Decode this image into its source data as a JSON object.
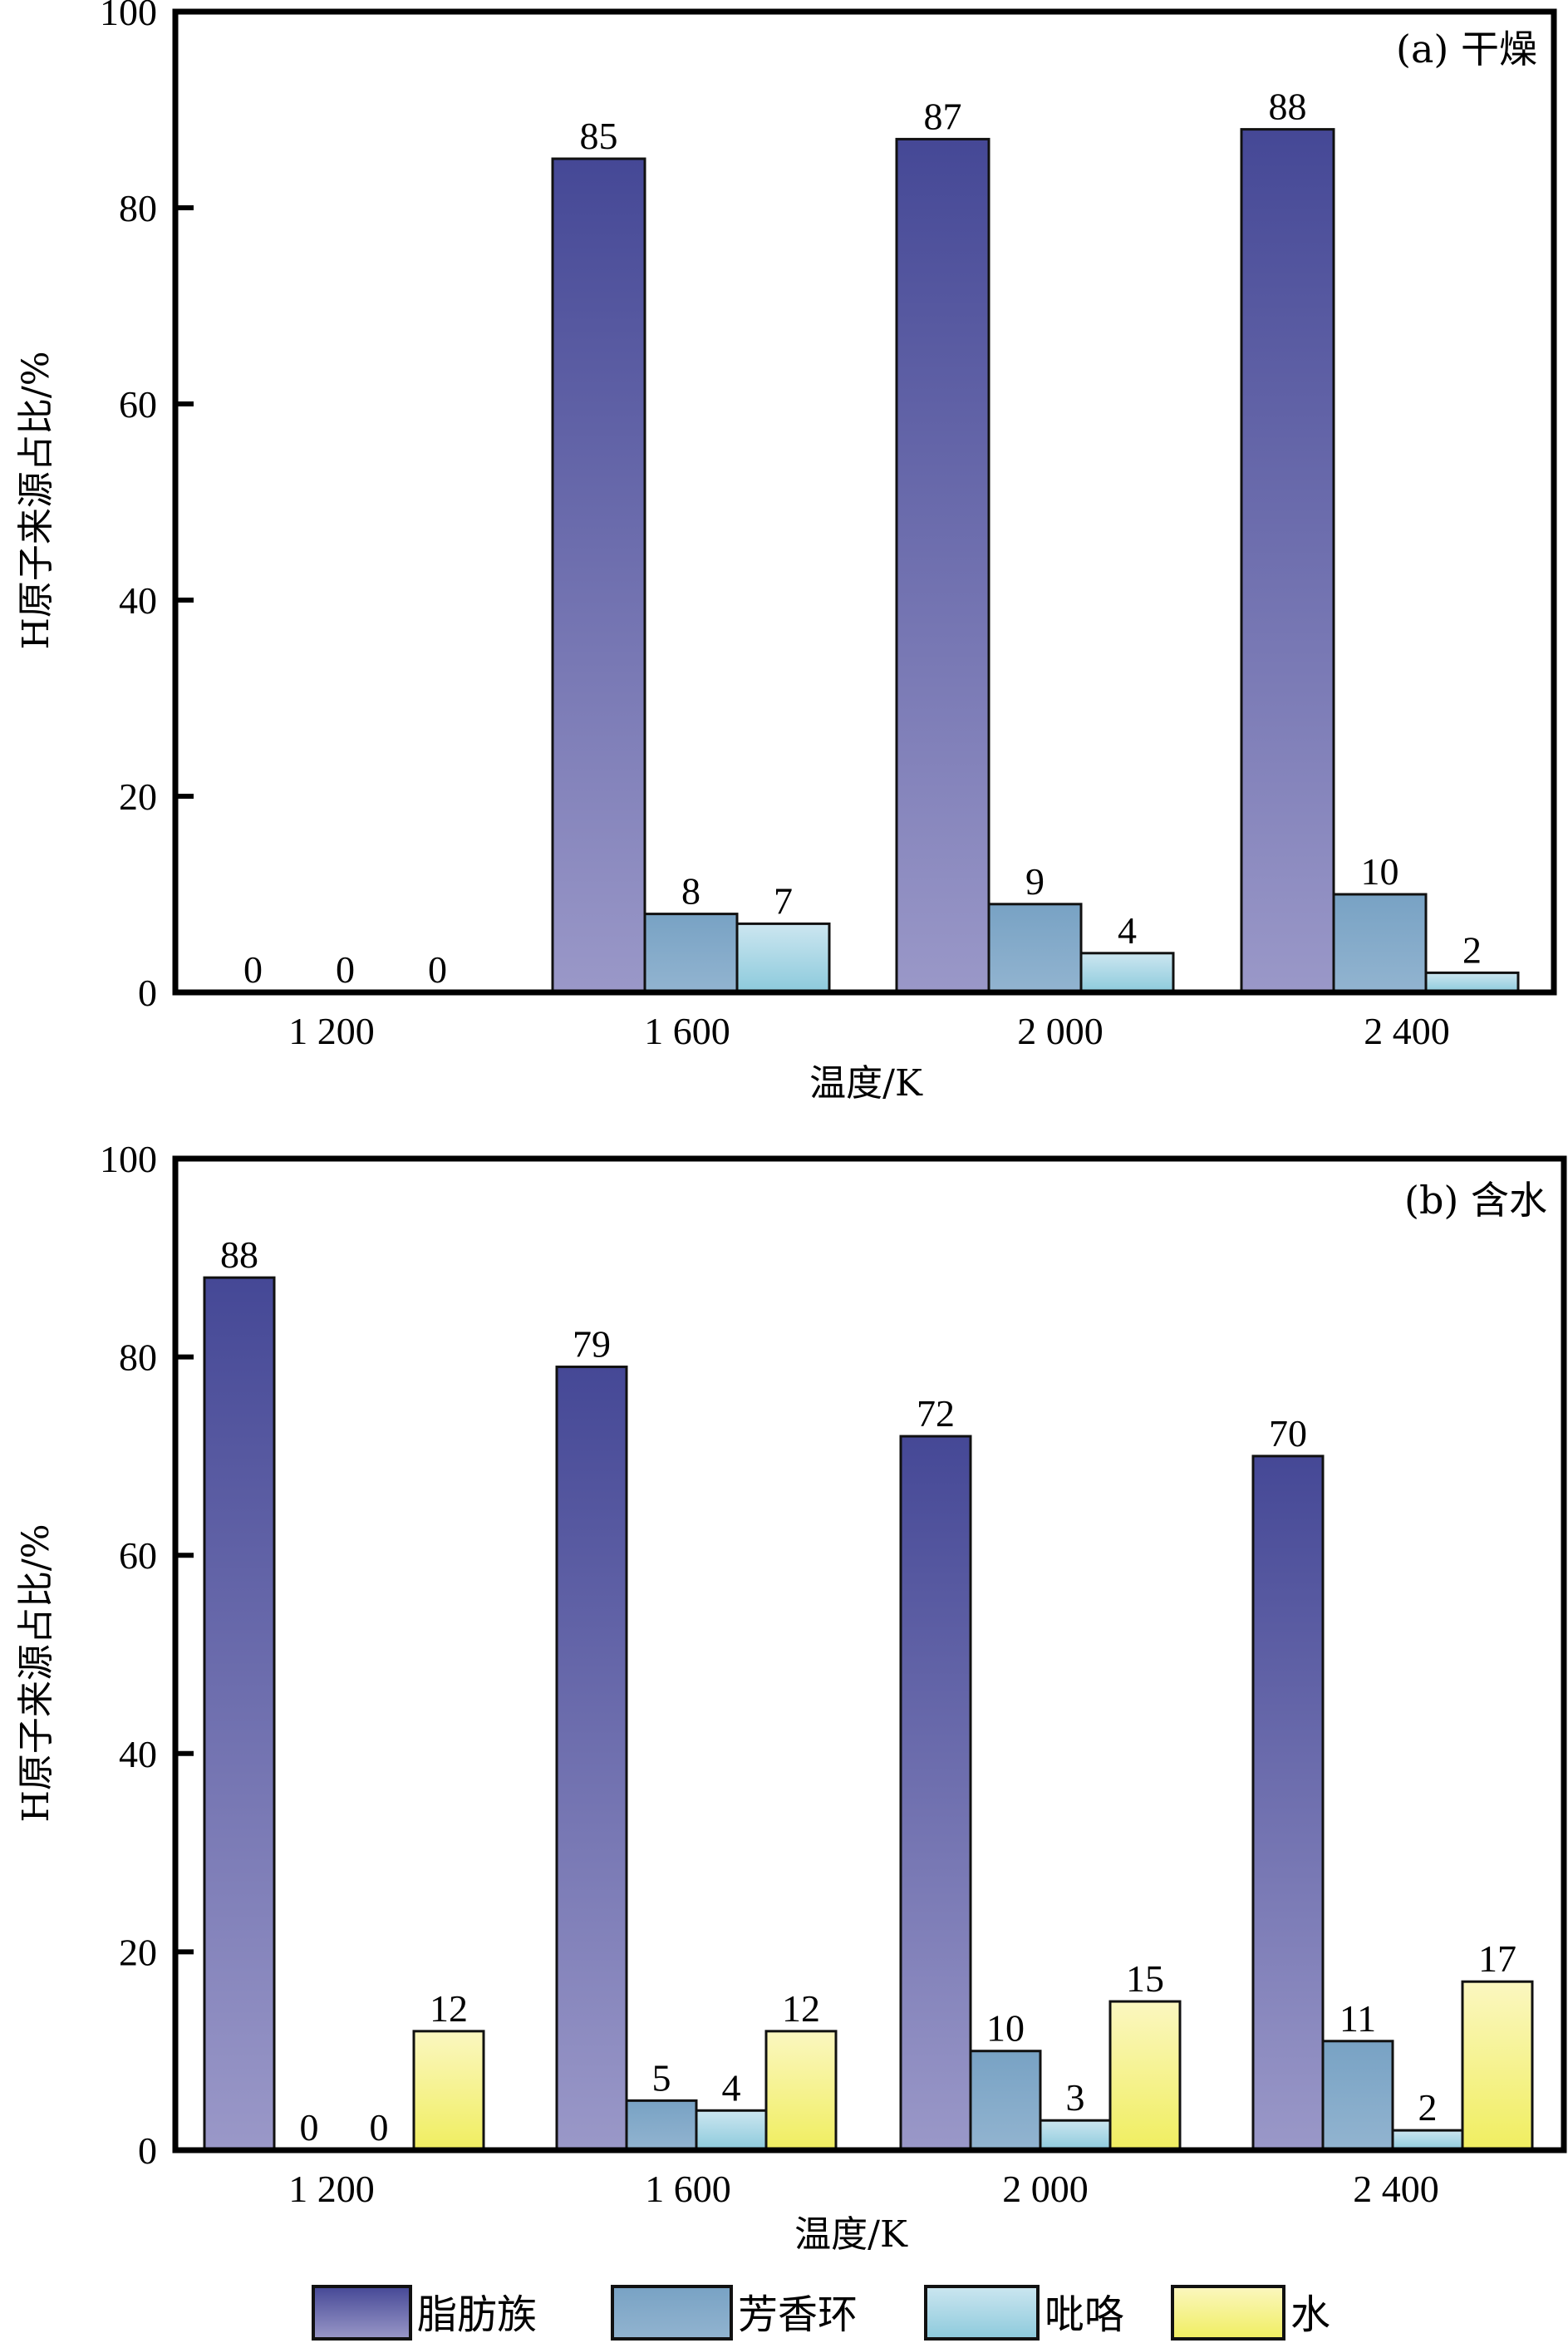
{
  "chart_data": [
    {
      "type": "bar",
      "panel_title": "(a) 干燥",
      "xlabel": "温度/K",
      "ylabel": "H原子来源占比/%",
      "ylim": [
        0,
        100
      ],
      "yticks": [
        "0",
        "20",
        "40",
        "60",
        "80",
        "100"
      ],
      "categories": [
        "1 200",
        "1 600",
        "2 000",
        "2 400"
      ],
      "series": [
        {
          "name": "脂肪族",
          "values": [
            0,
            85,
            87,
            88
          ],
          "labels": [
            "0",
            "85",
            "87",
            "88"
          ]
        },
        {
          "name": "芳香环",
          "values": [
            0,
            8,
            9,
            10
          ],
          "labels": [
            "0",
            "8",
            "9",
            "10"
          ]
        },
        {
          "name": "吡咯",
          "values": [
            0,
            7,
            4,
            2
          ],
          "labels": [
            "0",
            "7",
            "4",
            "2"
          ]
        }
      ]
    },
    {
      "type": "bar",
      "panel_title": "(b) 含水",
      "xlabel": "温度/K",
      "ylabel": "H原子来源占比/%",
      "ylim": [
        0,
        100
      ],
      "yticks": [
        "0",
        "20",
        "40",
        "60",
        "80",
        "100"
      ],
      "categories": [
        "1 200",
        "1 600",
        "2 000",
        "2 400"
      ],
      "series": [
        {
          "name": "脂肪族",
          "values": [
            88,
            79,
            72,
            70
          ],
          "labels": [
            "88",
            "79",
            "72",
            "70"
          ]
        },
        {
          "name": "芳香环",
          "values": [
            0,
            5,
            10,
            11
          ],
          "labels": [
            "0",
            "5",
            "10",
            "11"
          ]
        },
        {
          "name": "吡咯",
          "values": [
            0,
            4,
            3,
            2
          ],
          "labels": [
            "0",
            "4",
            "3",
            "2"
          ]
        },
        {
          "name": "水",
          "values": [
            12,
            12,
            15,
            17
          ],
          "labels": [
            "12",
            "12",
            "15",
            "17"
          ]
        }
      ]
    }
  ],
  "legend": {
    "placement": "bottom",
    "items": [
      {
        "name": "脂肪族",
        "color_top": "#454896",
        "color_bottom": "#9a98c8"
      },
      {
        "name": "芳香环",
        "color_top": "#78a2c4",
        "color_bottom": "#92b4d0"
      },
      {
        "name": "吡咯",
        "color_top": "#cce6f0",
        "color_bottom": "#8ccadc"
      },
      {
        "name": "水",
        "color_top": "#fbf7c0",
        "color_bottom": "#f0ee60"
      }
    ]
  }
}
